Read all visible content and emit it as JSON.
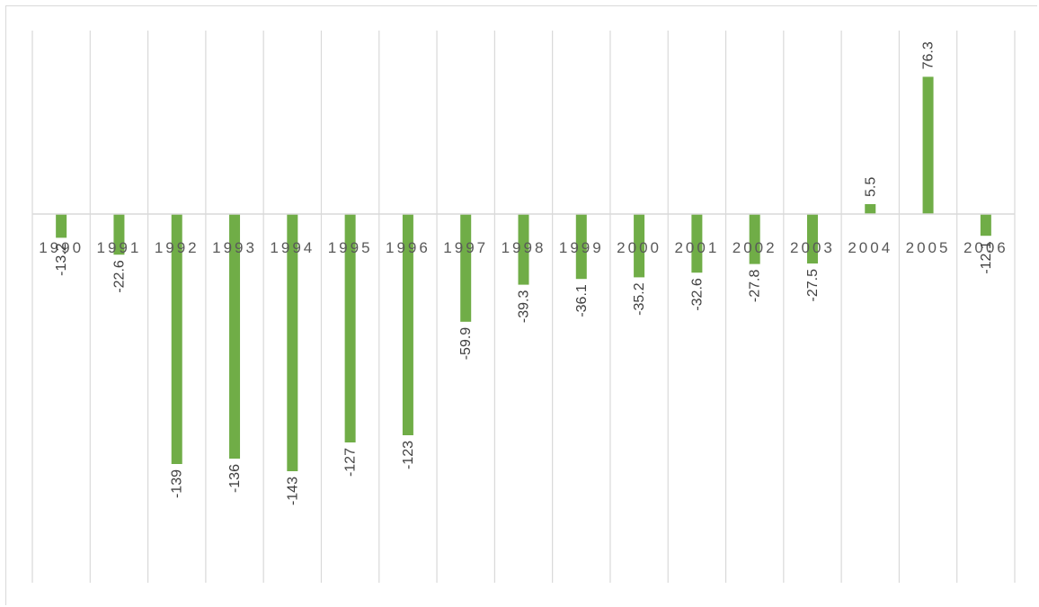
{
  "chart_data": {
    "type": "bar",
    "categories": [
      "1990",
      "1991",
      "1992",
      "1993",
      "1994",
      "1995",
      "1996",
      "1997",
      "1998",
      "1999",
      "2000",
      "2001",
      "2002",
      "2003",
      "2004",
      "2005",
      "2006"
    ],
    "values": [
      -13.2,
      -22.6,
      -139,
      -136,
      -143,
      -127,
      -123,
      -59.9,
      -39.3,
      -36.1,
      -35.2,
      -32.6,
      -27.8,
      -27.5,
      5.5,
      76.3,
      -12.1
    ],
    "data_labels": [
      "-13.2",
      "-22.6",
      "-139",
      "-136",
      "-143",
      "-127",
      "-123",
      "-59.9",
      "-39.3",
      "-36.1",
      "-35.2",
      "-32.6",
      "-27.8",
      "-27.5",
      "5.5",
      "76.3",
      "-12.1"
    ],
    "title": "",
    "xlabel": "",
    "ylabel": "",
    "ylim": [
      -200,
      100
    ],
    "grid": "vertical",
    "legend": "none",
    "colors": {
      "bar": "#70ad47",
      "grid": "#d9d9d9",
      "axis": "#d9d9d9",
      "text": "#404040"
    }
  }
}
